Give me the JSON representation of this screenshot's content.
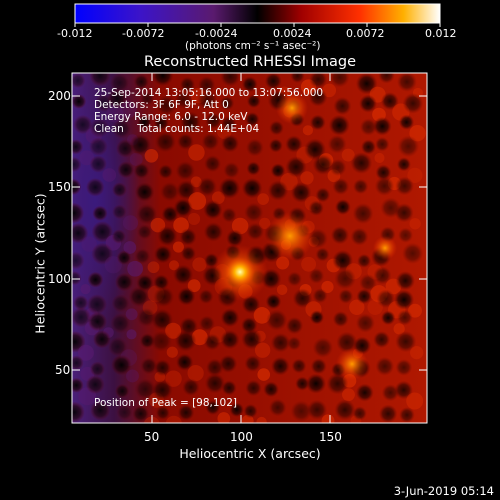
{
  "colorbar": {
    "ticks": [
      "-0.012",
      "-0.0072",
      "-0.0024",
      "0.0024",
      "0.0072",
      "0.012"
    ],
    "units": "(photons cm⁻² s⁻¹ asec⁻²)"
  },
  "plot": {
    "title": "Reconstructed RHESSI Image",
    "xlabel": "Heliocentric X (arcsec)",
    "ylabel": "Heliocentric Y (arcsec)",
    "xticks": [
      "50",
      "100",
      "150"
    ],
    "yticks": [
      "200",
      "150",
      "100",
      "50"
    ]
  },
  "info": {
    "time_range": "25-Sep-2014 13:05:16.000 to 13:07:56.000",
    "detectors": "Detectors: 3F 6F 9F, Att 0",
    "energy": "Energy Range: 6.0 - 12.0 keV",
    "clean": "Clean    Total counts: 1.44E+04",
    "peak": "Position of Peak = [98,102]"
  },
  "footer": {
    "date": "3-Jun-2019 05:14"
  },
  "colors": {
    "background": "#000000",
    "foreground": "#ffffff"
  }
}
